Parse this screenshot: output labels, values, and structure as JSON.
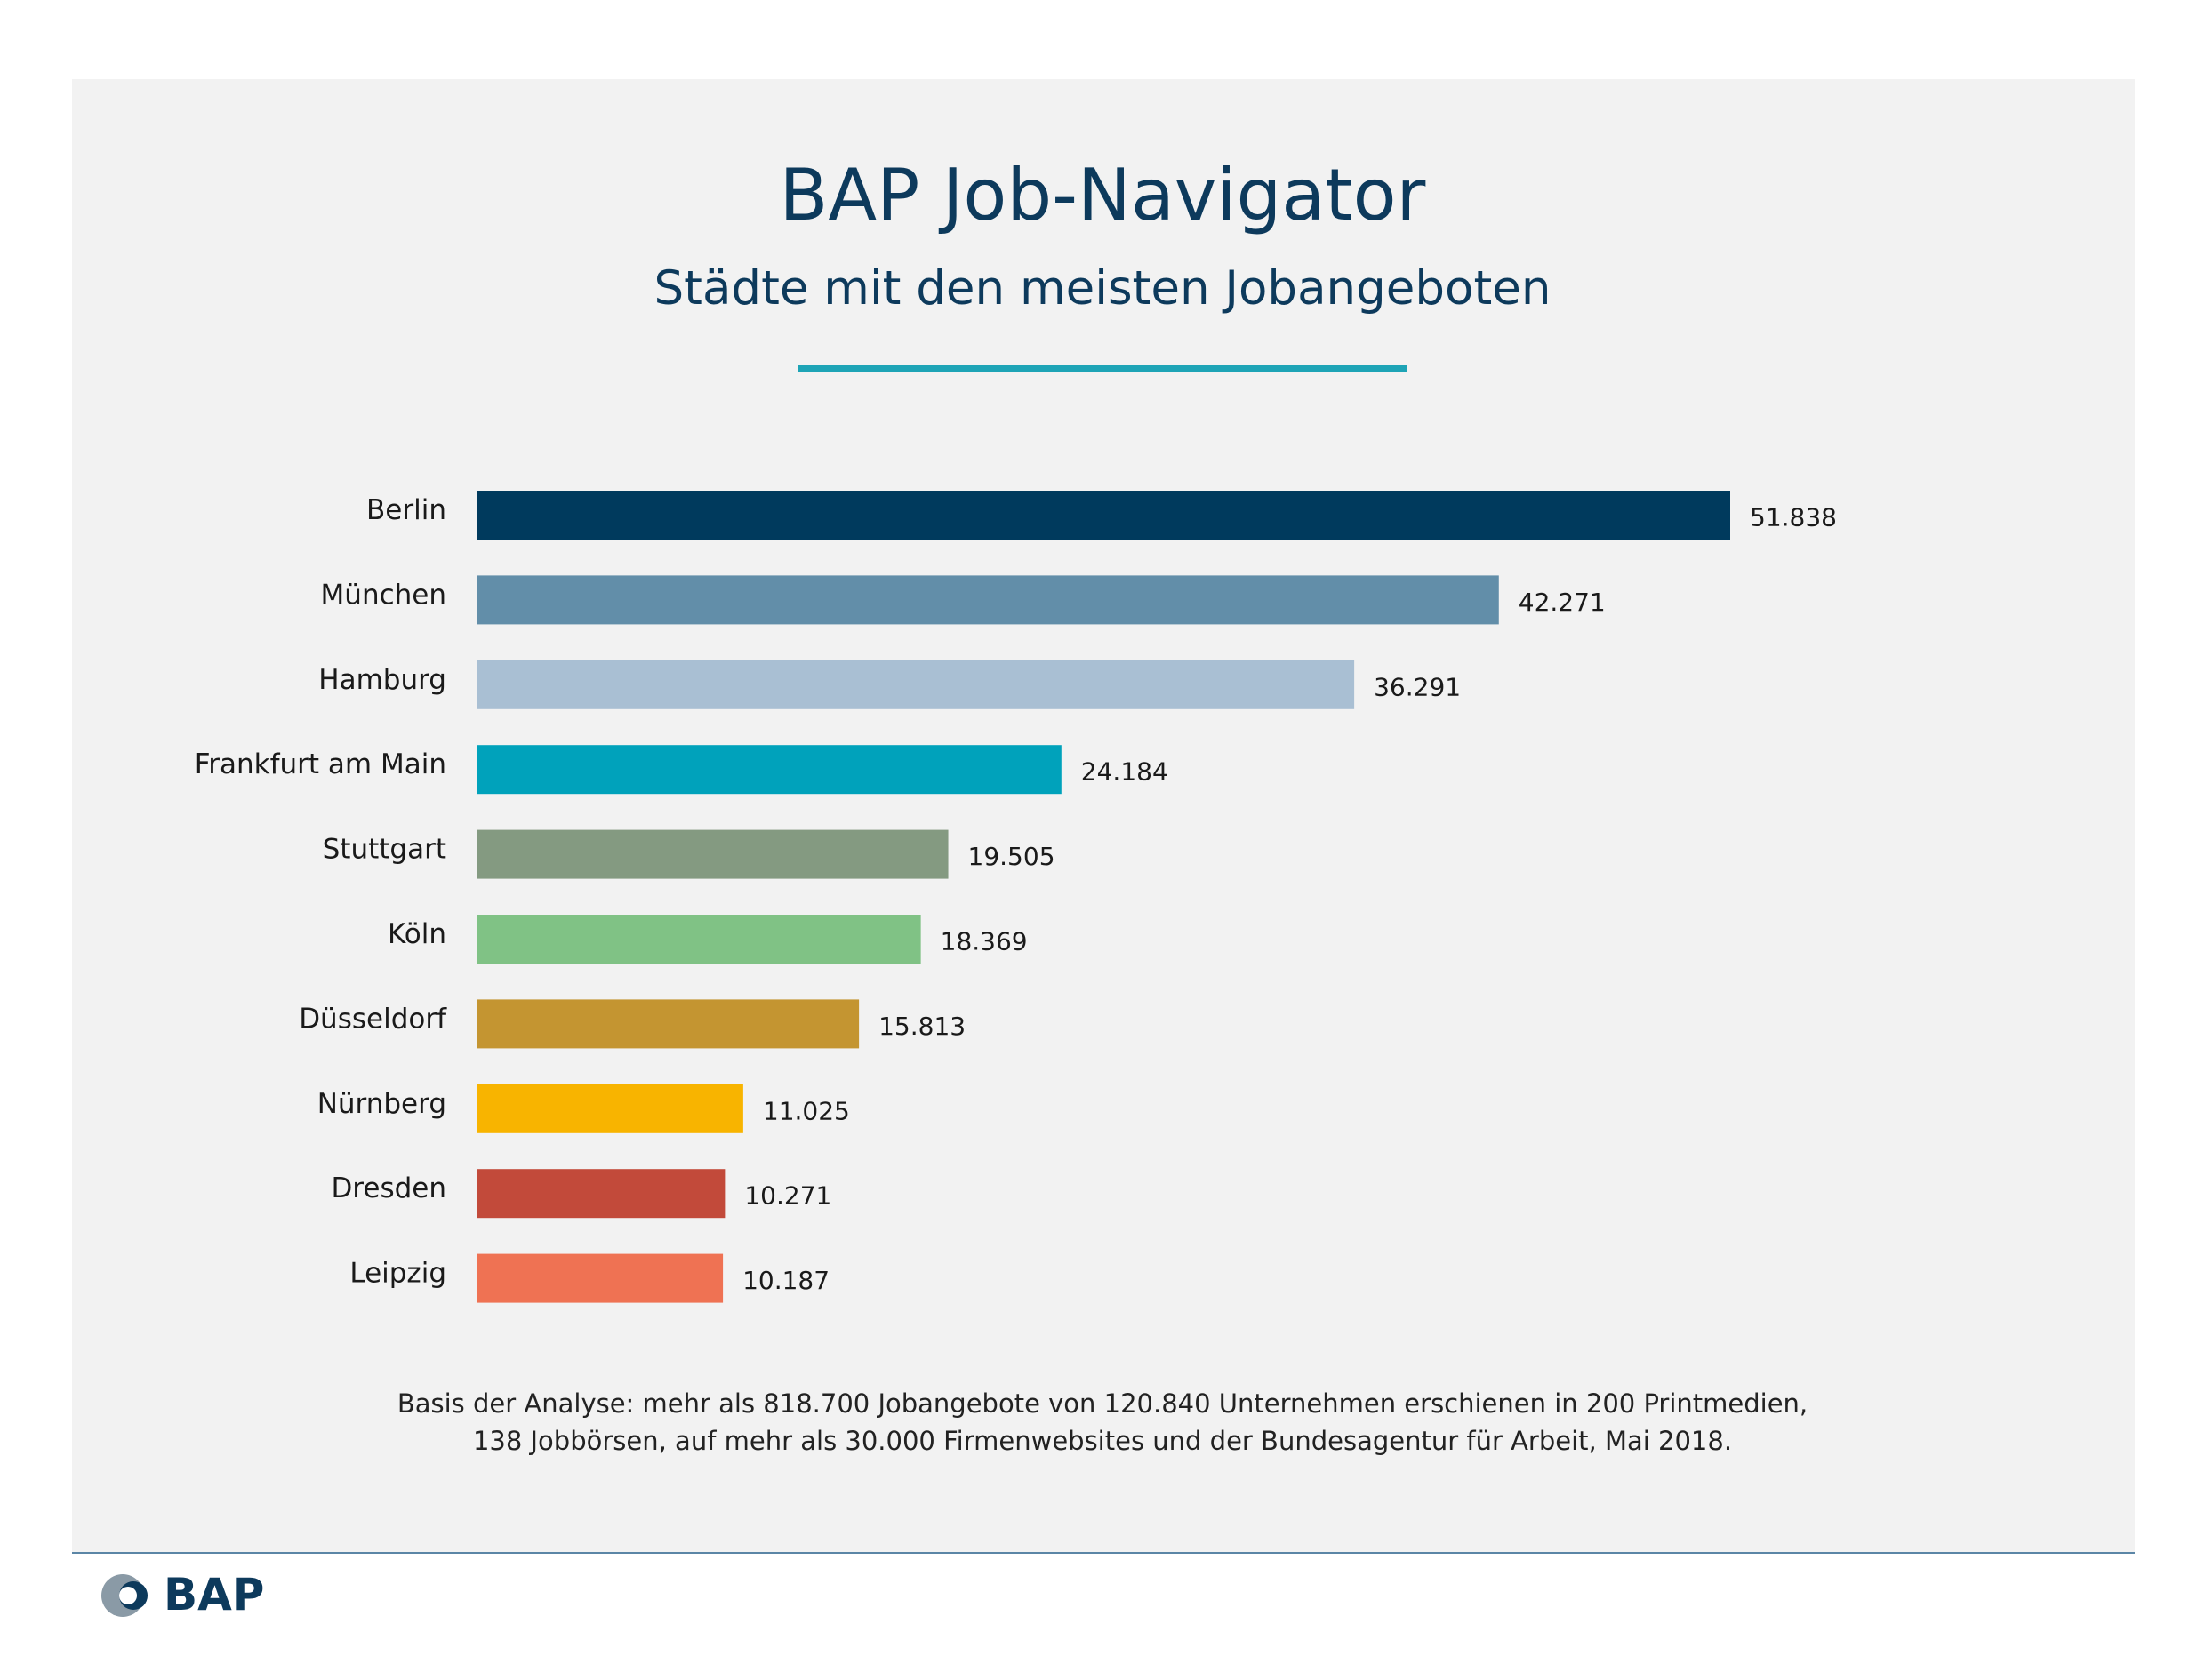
{
  "header": {
    "title": "BAP Job-Navigator",
    "subtitle": "Städte mit den meisten Jobangeboten"
  },
  "chart_data": {
    "type": "bar",
    "orientation": "horizontal",
    "title": "BAP Job-Navigator",
    "subtitle": "Städte mit den meisten Jobangeboten",
    "xlabel": "",
    "ylabel": "",
    "grid": false,
    "categories": [
      "Berlin",
      "München",
      "Hamburg",
      "Frankfurt am Main",
      "Stuttgart",
      "Köln",
      "Düsseldorf",
      "Nürnberg",
      "Dresden",
      "Leipzig"
    ],
    "values": [
      51838,
      42271,
      36291,
      24184,
      19505,
      18369,
      15813,
      11025,
      10271,
      10187
    ],
    "value_labels": [
      "51.838",
      "42.271",
      "36.291",
      "24.184",
      "19.505",
      "18.369",
      "15.813",
      "11.025",
      "10.271",
      "10.187"
    ],
    "colors": [
      "#003a5d",
      "#628ea9",
      "#a9bfd3",
      "#00a2bb",
      "#849a81",
      "#80c285",
      "#c49531",
      "#f8b400",
      "#c24a3a",
      "#ef7253"
    ]
  },
  "footnote": {
    "line1": "Basis der Analyse: mehr als 818.700 Jobangebote von 120.840 Unternehmen erschienen in 200 Printmedien,",
    "line2": "138 Jobbörsen, auf mehr als 30.000 Firmenwebsites und der Bundesagentur für Arbeit, Mai 2018."
  },
  "logo": {
    "text": "BAP",
    "icon": "bap-logo-icon"
  }
}
